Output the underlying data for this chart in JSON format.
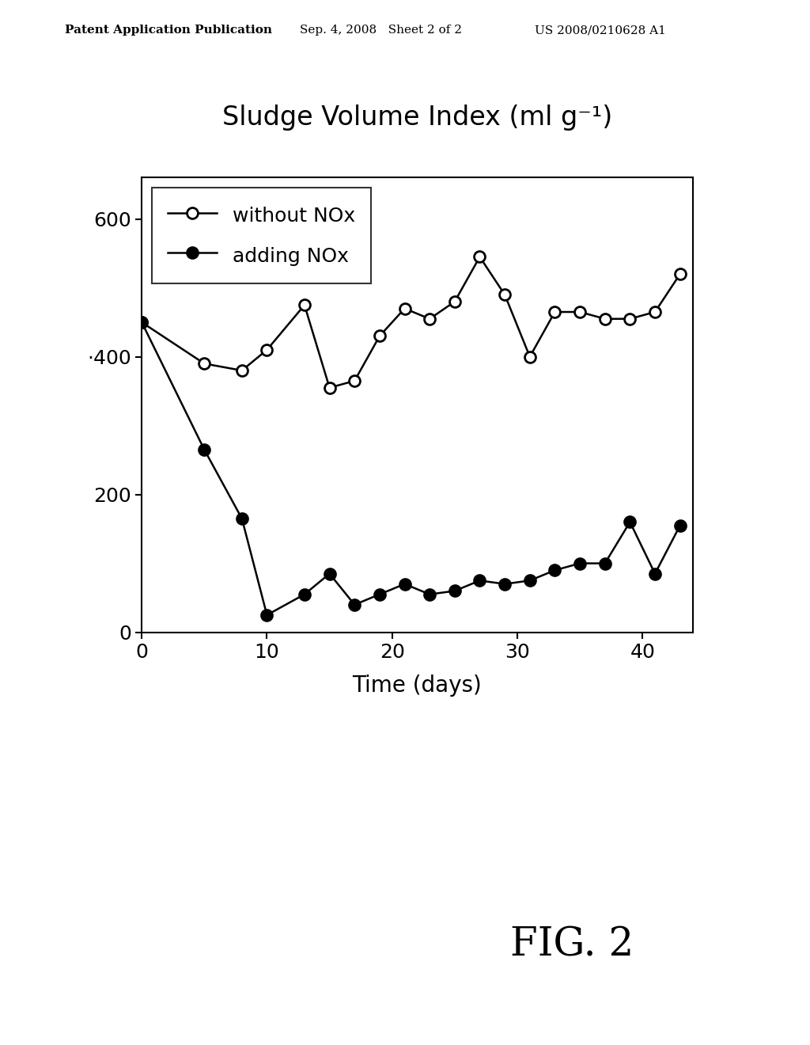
{
  "title": "Sludge Volume Index (ml g⁻¹)",
  "xlabel": "Time (days)",
  "xlim": [
    0,
    44
  ],
  "ylim": [
    0,
    660
  ],
  "xticks": [
    0,
    10,
    20,
    30,
    40
  ],
  "yticks": [
    0,
    200,
    400,
    600
  ],
  "ytick_labels": [
    "0",
    "200",
    "·400",
    "600"
  ],
  "without_nox_x": [
    0,
    5,
    8,
    10,
    13,
    15,
    17,
    19,
    21,
    23,
    25,
    27,
    29,
    31,
    33,
    35,
    37,
    39,
    41,
    43
  ],
  "without_nox_y": [
    450,
    390,
    380,
    410,
    475,
    355,
    365,
    430,
    470,
    455,
    480,
    545,
    490,
    400,
    465,
    465,
    455,
    455,
    465,
    520
  ],
  "adding_nox_x": [
    0,
    5,
    8,
    10,
    13,
    15,
    17,
    19,
    21,
    23,
    25,
    27,
    29,
    31,
    33,
    35,
    37,
    39,
    41,
    43
  ],
  "adding_nox_y": [
    450,
    265,
    165,
    25,
    55,
    85,
    40,
    55,
    70,
    55,
    60,
    75,
    70,
    75,
    90,
    100,
    100,
    160,
    85,
    155
  ],
  "legend_label1": "without NOx",
  "legend_label2": "adding NOx",
  "fig2_label": "FIG. 2",
  "header_left": "Patent Application Publication",
  "header_mid": "Sep. 4, 2008   Sheet 2 of 2",
  "header_right": "US 2008/0210628 A1",
  "background_color": "#ffffff",
  "line_color": "#000000",
  "title_fontsize": 24,
  "axis_fontsize": 20,
  "tick_fontsize": 18,
  "legend_fontsize": 18,
  "header_fontsize": 11,
  "fig2_fontsize": 36
}
